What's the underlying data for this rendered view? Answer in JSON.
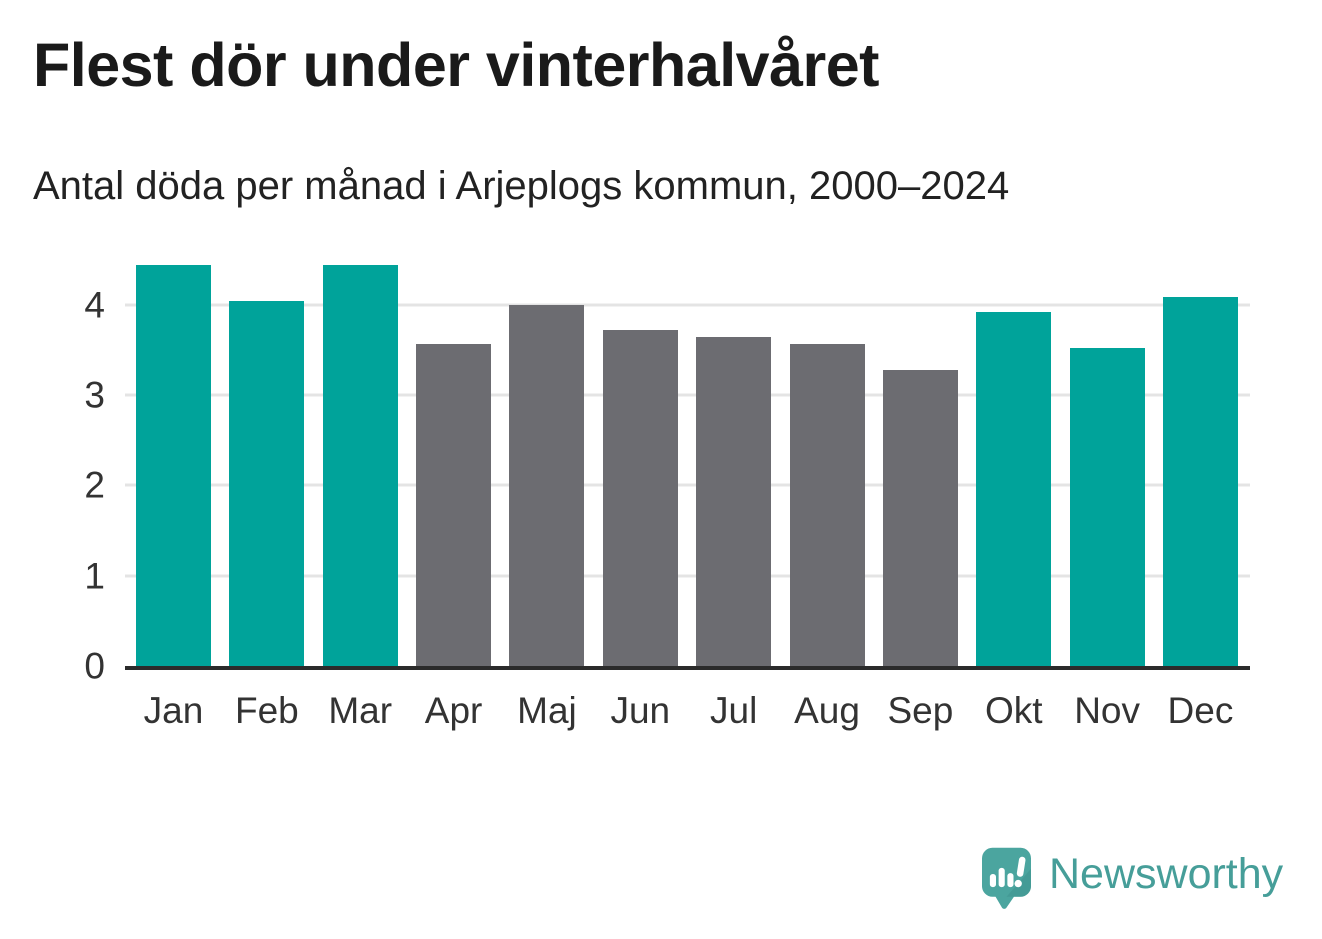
{
  "header": {
    "title": "Flest dör under vinterhalvåret",
    "subtitle": "Antal döda per månad i Arjeplogs kommun, 2000–2024"
  },
  "chart_data": {
    "type": "bar",
    "title": "Flest dör under vinterhalvåret",
    "subtitle": "Antal döda per månad i Arjeplogs kommun, 2000–2024",
    "categories": [
      "Jan",
      "Feb",
      "Mar",
      "Apr",
      "Maj",
      "Jun",
      "Jul",
      "Aug",
      "Sep",
      "Okt",
      "Nov",
      "Dec"
    ],
    "values": [
      4.44,
      4.04,
      4.44,
      3.56,
      4.0,
      3.72,
      3.64,
      3.56,
      3.28,
      3.92,
      3.52,
      4.08
    ],
    "bar_colors": [
      "#00a39a",
      "#00a39a",
      "#00a39a",
      "#6c6c71",
      "#6c6c71",
      "#6c6c71",
      "#6c6c71",
      "#6c6c71",
      "#6c6c71",
      "#00a39a",
      "#00a39a",
      "#00a39a"
    ],
    "highlight_color": "#00a39a",
    "muted_color": "#6c6c71",
    "highlighted_months": [
      "Jan",
      "Feb",
      "Mar",
      "Okt",
      "Nov",
      "Dec"
    ],
    "xlabel": "",
    "ylabel": "",
    "ylim": [
      0,
      4.55
    ],
    "yticks": [
      0,
      1,
      2,
      3,
      4
    ],
    "grid": true,
    "gridline_color": "#e4e4e4",
    "axis_color": "#2b2b2b",
    "legend": false
  },
  "footer": {
    "logo_text": "Newsworthy",
    "logo_text_color": "#469e99",
    "logo_bubble_color": "#4ba59f",
    "logo_bubble_shadow_color": "#3f948e"
  }
}
